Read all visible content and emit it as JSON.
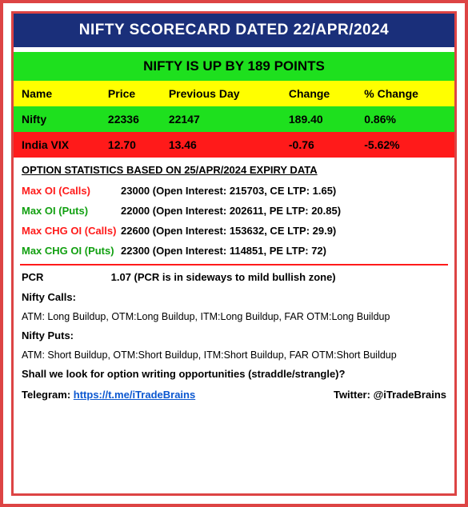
{
  "title": "NIFTY SCORECARD DATED 22/APR/2024",
  "subtitle": "NIFTY IS UP BY 189 POINTS",
  "table": {
    "columns": [
      "Name",
      "Price",
      "Previous Day",
      "Change",
      "% Change"
    ],
    "rows": [
      {
        "name": "Nifty",
        "price": "22336",
        "prev": "22147",
        "change": "189.40",
        "pct": "0.86%",
        "row_class": "row-green"
      },
      {
        "name": "India VIX",
        "price": "12.70",
        "prev": "13.46",
        "change": "-0.76",
        "pct": "-5.62%",
        "row_class": "row-red"
      }
    ]
  },
  "option_header": "OPTION STATISTICS BASED ON 25/APR/2024 EXPIRY DATA",
  "options": [
    {
      "label": "Max OI (Calls)",
      "label_color": "lbl-red",
      "value": "23000 (Open Interest: 215703, CE LTP: 1.65)"
    },
    {
      "label": "Max OI (Puts)",
      "label_color": "lbl-green",
      "value": "22000 (Open Interest: 202611, PE LTP: 20.85)"
    },
    {
      "label": "Max CHG OI (Calls)",
      "label_color": "lbl-red",
      "value": "22600 (Open Interest: 153632, CE LTP: 29.9)"
    },
    {
      "label": "Max CHG OI (Puts)",
      "label_color": "lbl-green",
      "value": "22300 (Open Interest: 114851, PE LTP: 72)"
    }
  ],
  "pcr": {
    "label": "PCR",
    "value": "1.07 (PCR is in sideways to mild bullish zone)"
  },
  "calls": {
    "label": "Nifty Calls:",
    "value": "ATM: Long Buildup, OTM:Long Buildup, ITM:Long Buildup, FAR OTM:Long Buildup"
  },
  "puts": {
    "label": "Nifty Puts:",
    "value": "ATM: Short Buildup, OTM:Short Buildup, ITM:Short Buildup, FAR OTM:Short Buildup"
  },
  "question": "Shall we look for option writing opportunities (straddle/strangle)?",
  "telegram": {
    "label": "Telegram: ",
    "url": "https://t.me/iTradeBrains"
  },
  "twitter": {
    "label": "Twitter: ",
    "handle": "@iTradeBrains"
  }
}
